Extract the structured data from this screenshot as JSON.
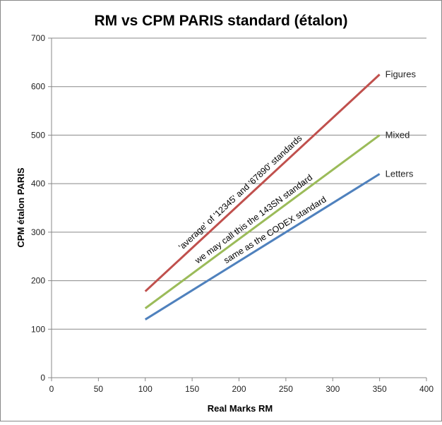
{
  "chart_data": {
    "type": "line",
    "title": "RM vs CPM PARIS standard (étalon)",
    "xlabel": "Real Marks RM",
    "ylabel": "CPM étalon PARIS",
    "xlim": [
      0,
      400
    ],
    "ylim": [
      0,
      700
    ],
    "xticks": [
      0,
      50,
      100,
      150,
      200,
      250,
      300,
      350,
      400
    ],
    "yticks": [
      0,
      100,
      200,
      300,
      400,
      500,
      600,
      700
    ],
    "grid": "horizontal",
    "series": [
      {
        "name": "Figures",
        "color": "#C0504D",
        "x": [
          100,
          350
        ],
        "y": [
          178,
          625
        ],
        "annotation": "'average' of '12345' and '67890' standards"
      },
      {
        "name": "Mixed",
        "color": "#9BBB59",
        "x": [
          100,
          350
        ],
        "y": [
          143,
          500
        ],
        "annotation": "we may call this the 143SN standard"
      },
      {
        "name": "Letters",
        "color": "#4F81BD",
        "x": [
          100,
          350
        ],
        "y": [
          120,
          420
        ],
        "annotation": "same as the CODEX standard"
      }
    ]
  }
}
